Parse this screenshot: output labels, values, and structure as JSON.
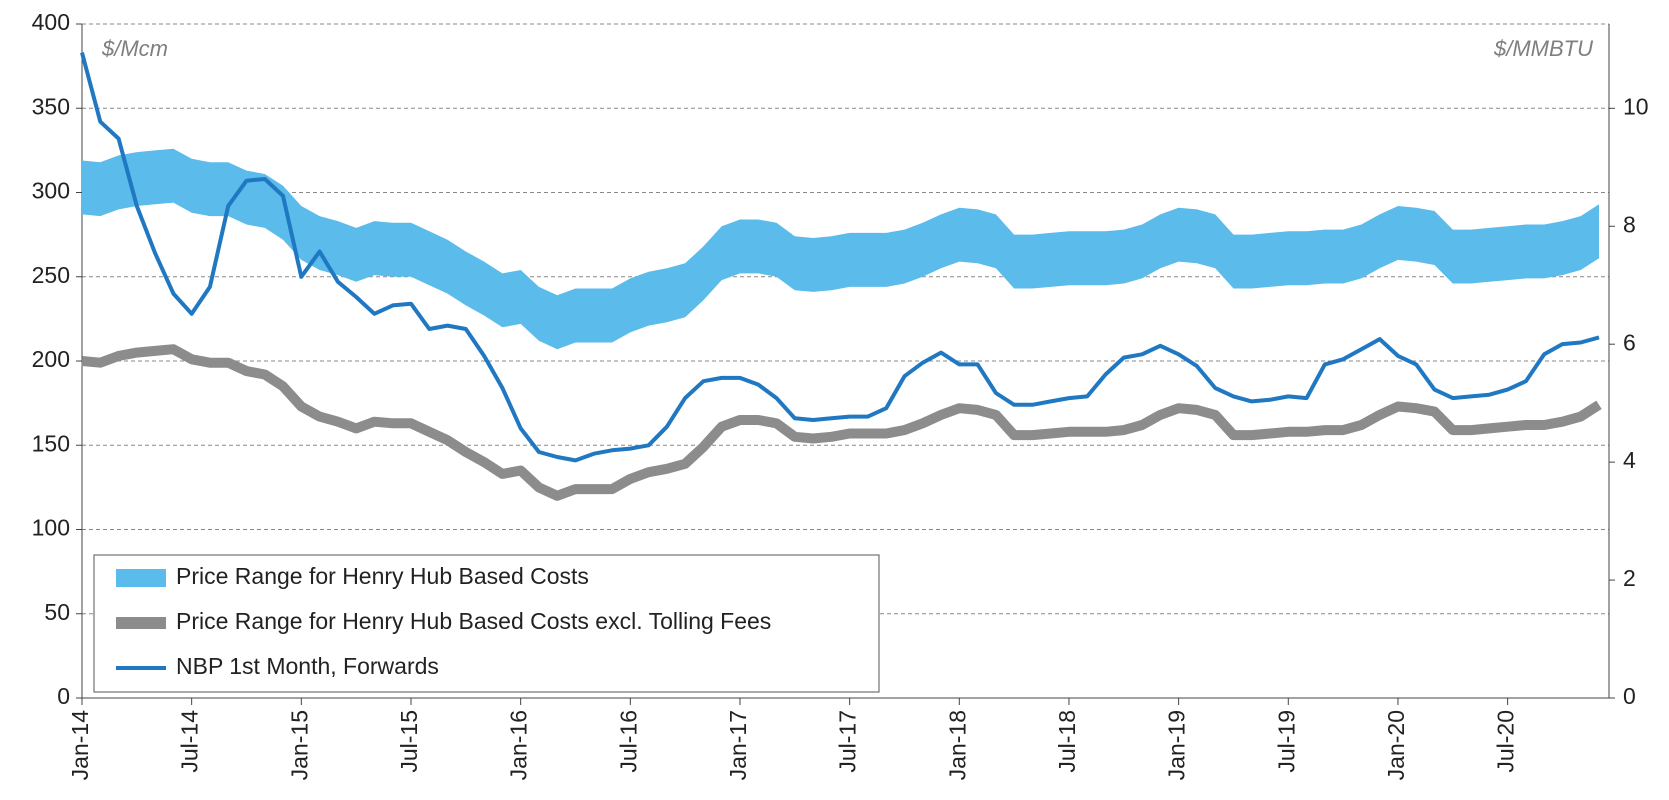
{
  "chart_data": {
    "type": "line",
    "categories": [
      "Jan-14",
      null,
      null,
      null,
      null,
      null,
      "Jul-14",
      null,
      null,
      null,
      null,
      null,
      "Jan-15",
      null,
      null,
      null,
      null,
      null,
      "Jul-15",
      null,
      null,
      null,
      null,
      null,
      "Jan-16",
      null,
      null,
      null,
      null,
      null,
      "Jul-16",
      null,
      null,
      null,
      null,
      null,
      "Jan-17",
      null,
      null,
      null,
      null,
      null,
      "Jul-17",
      null,
      null,
      null,
      null,
      null,
      "Jan-18",
      null,
      null,
      null,
      null,
      null,
      "Jul-18",
      null,
      null,
      null,
      null,
      null,
      "Jan-19",
      null,
      null,
      null,
      null,
      null,
      "Jul-19",
      null,
      null,
      null,
      null,
      null,
      "Jan-20",
      null,
      null,
      null,
      null,
      null,
      "Jul-20",
      null,
      null,
      null,
      null,
      null
    ],
    "y_label": "$/Mcm",
    "y2_label": "$/MMBTU",
    "ylim": [
      0,
      400
    ],
    "yticks": [
      0,
      50,
      100,
      150,
      200,
      250,
      300,
      350,
      400
    ],
    "y2lim": [
      0,
      11.43
    ],
    "y2ticks": [
      0,
      2,
      4,
      6,
      8,
      10
    ],
    "grid": true,
    "legend": "lower left",
    "series": [
      {
        "name": "Price Range for Henry Hub Based Costs",
        "color": "#5bbbea",
        "style": "band",
        "upper": [
          319,
          318,
          322,
          324,
          325,
          326,
          320,
          318,
          318,
          313,
          311,
          304,
          292,
          286,
          283,
          279,
          283,
          282,
          282,
          277,
          272,
          265,
          259,
          252,
          254,
          244,
          239,
          243,
          243,
          243,
          249,
          253,
          255,
          258,
          268,
          280,
          284,
          284,
          282,
          274,
          273,
          274,
          276,
          276,
          276,
          278,
          282,
          287,
          291,
          290,
          287,
          275,
          275,
          276,
          277,
          277,
          277,
          278,
          281,
          287,
          291,
          290,
          287,
          275,
          275,
          276,
          277,
          277,
          278,
          278,
          281,
          287,
          292,
          291,
          289,
          278,
          278,
          279,
          280,
          281,
          281,
          283,
          286,
          293
        ],
        "lower": [
          287,
          286,
          290,
          292,
          293,
          294,
          288,
          286,
          286,
          281,
          279,
          272,
          260,
          254,
          251,
          247,
          251,
          250,
          250,
          245,
          240,
          233,
          227,
          220,
          222,
          212,
          207,
          211,
          211,
          211,
          217,
          221,
          223,
          226,
          236,
          248,
          252,
          252,
          250,
          242,
          241,
          242,
          244,
          244,
          244,
          246,
          250,
          255,
          259,
          258,
          255,
          243,
          243,
          244,
          245,
          245,
          245,
          246,
          249,
          255,
          259,
          258,
          255,
          243,
          243,
          244,
          245,
          245,
          246,
          246,
          249,
          255,
          260,
          259,
          257,
          246,
          246,
          247,
          248,
          249,
          249,
          251,
          254,
          261
        ]
      },
      {
        "name": "Price Range for Henry Hub Based Costs excl. Tolling Fees",
        "color": "#8c8c8c",
        "style": "thick",
        "values": [
          200,
          199,
          203,
          205,
          206,
          207,
          201,
          199,
          199,
          194,
          192,
          185,
          173,
          167,
          164,
          160,
          164,
          163,
          163,
          158,
          153,
          146,
          140,
          133,
          135,
          125,
          120,
          124,
          124,
          124,
          130,
          134,
          136,
          139,
          149,
          161,
          165,
          165,
          163,
          155,
          154,
          155,
          157,
          157,
          157,
          159,
          163,
          168,
          172,
          171,
          168,
          156,
          156,
          157,
          158,
          158,
          158,
          159,
          162,
          168,
          172,
          171,
          168,
          156,
          156,
          157,
          158,
          158,
          159,
          159,
          162,
          168,
          173,
          172,
          170,
          159,
          159,
          160,
          161,
          162,
          162,
          164,
          167,
          174
        ]
      },
      {
        "name": "NBP 1st Month, Forwards",
        "color": "#1f78c1",
        "style": "line",
        "values": [
          383,
          342,
          332,
          292,
          264,
          240,
          228,
          244,
          292,
          307,
          308,
          298,
          250,
          265,
          247,
          238,
          228,
          233,
          234,
          219,
          221,
          219,
          203,
          184,
          160,
          146,
          143,
          141,
          145,
          147,
          148,
          150,
          161,
          178,
          188,
          190,
          190,
          186,
          178,
          166,
          165,
          166,
          167,
          167,
          172,
          191,
          199,
          205,
          198,
          198,
          181,
          174,
          174,
          176,
          178,
          179,
          192,
          202,
          204,
          209,
          204,
          197,
          184,
          179,
          176,
          177,
          179,
          178,
          198,
          201,
          207,
          213,
          203,
          198,
          183,
          178,
          179,
          180,
          183,
          188,
          204,
          210,
          211,
          214
        ]
      }
    ]
  }
}
